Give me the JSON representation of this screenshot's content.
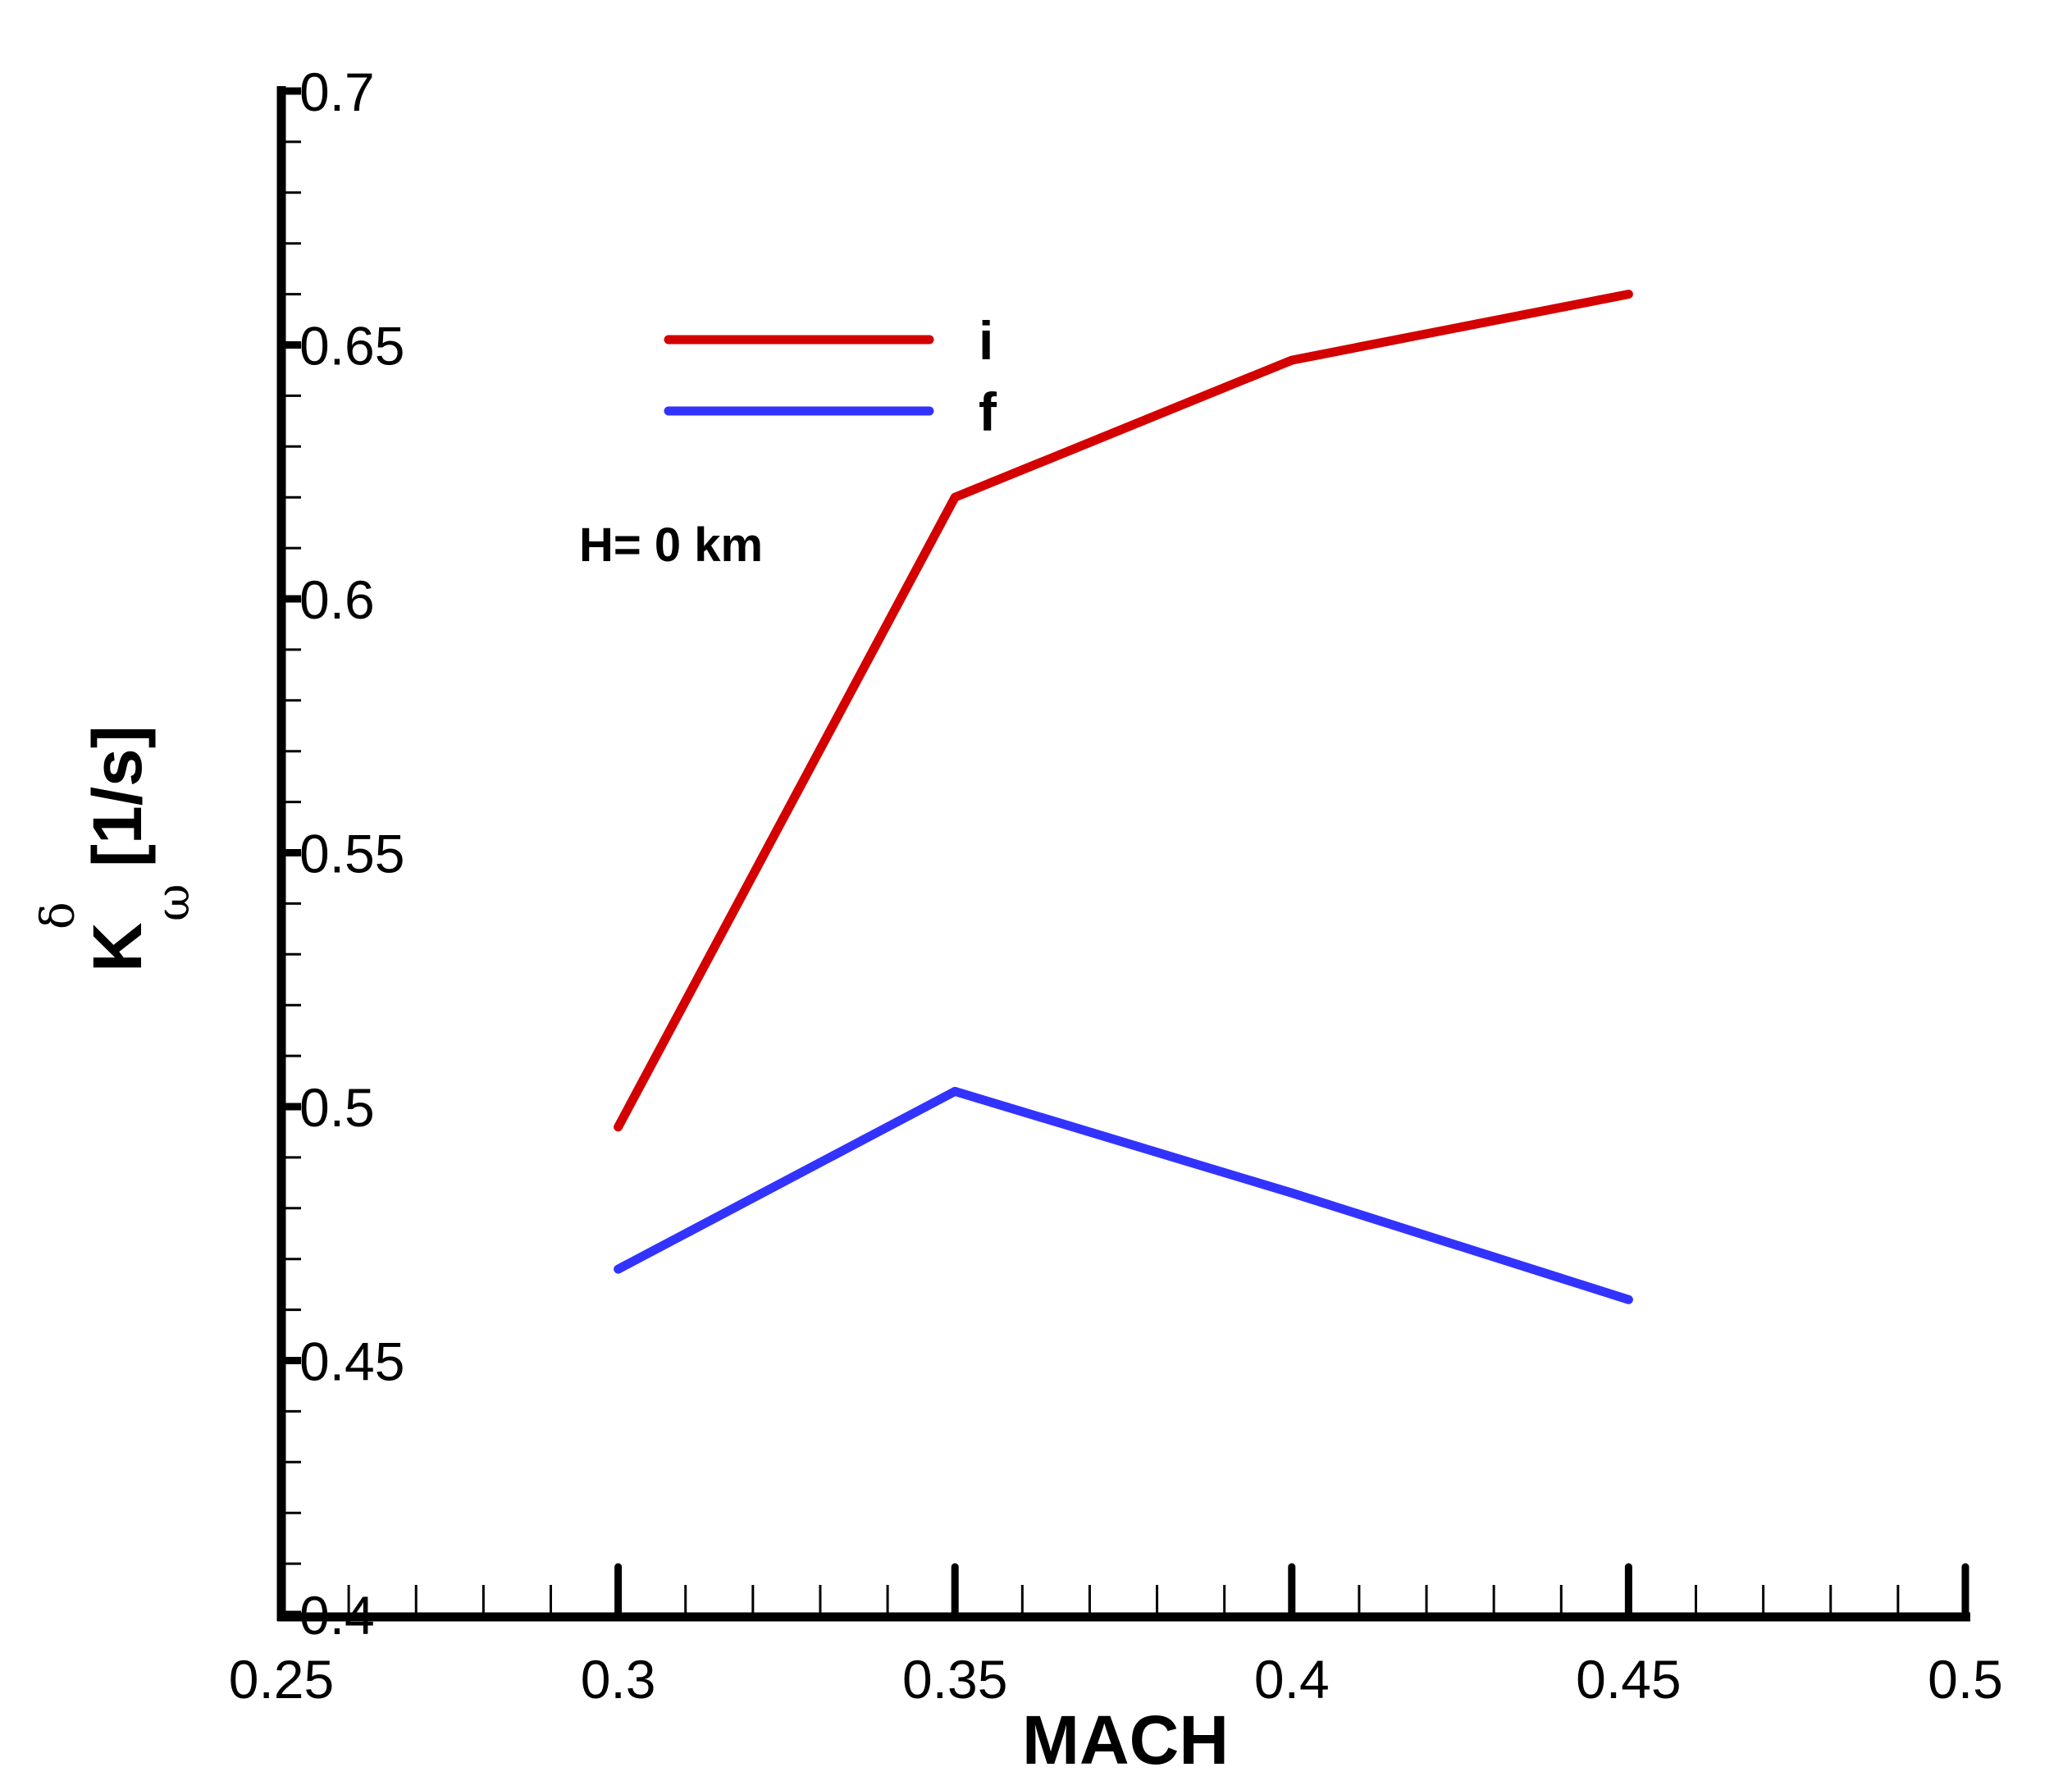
{
  "chart_data": {
    "type": "line",
    "title": "",
    "xlabel": "MACH",
    "ylabel": "K_ω^δ [1/s]",
    "ylabel_parts": {
      "base": "K",
      "superscript": "δ",
      "subscript": "ω",
      "unit": "[1/s]"
    },
    "xlim": [
      0.25,
      0.5
    ],
    "ylim": [
      0.4,
      0.7
    ],
    "x_ticks": [
      "0.25",
      "0.3",
      "0.35",
      "0.4",
      "0.45",
      "0.5"
    ],
    "y_ticks": [
      "0.4",
      "0.45",
      "0.5",
      "0.55",
      "0.6",
      "0.65",
      "0.7"
    ],
    "x_minor_per_major": 4,
    "y_minor_per_major": 4,
    "grid": false,
    "legend_position": "upper-left inside plot",
    "x": [
      0.3,
      0.35,
      0.4,
      0.45
    ],
    "series": [
      {
        "name": "i",
        "color": "#D40000",
        "values": [
          0.496,
          0.62,
          0.647,
          0.66
        ]
      },
      {
        "name": "f",
        "color": "#3333FF",
        "values": [
          0.468,
          0.503,
          0.483,
          0.462
        ]
      }
    ],
    "annotations": [
      {
        "text": "H= 0 km",
        "x": 0.2955,
        "y": 0.61
      }
    ]
  },
  "labels": {
    "xlabel": "MACH",
    "ylabel_base": "K",
    "ylabel_sup": "δ",
    "ylabel_sub": "ω",
    "ylabel_unit": "[1/s]",
    "annotation": "H= 0 km",
    "legend_i": "i",
    "legend_f": "f"
  }
}
